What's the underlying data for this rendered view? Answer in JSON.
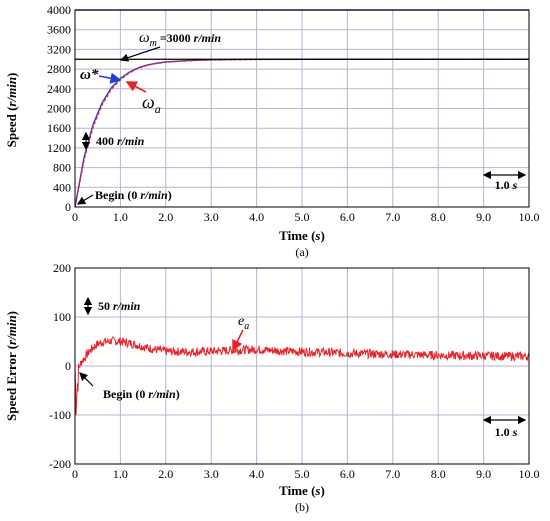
{
  "chart_data": [
    {
      "type": "line",
      "panel_label": "(a)",
      "xlabel": "Time (s)",
      "ylabel": "Speed (r/min)",
      "xlim": [
        0,
        10
      ],
      "ylim": [
        0,
        4000
      ],
      "x_ticks": [
        "0",
        "1.0",
        "2.0",
        "3.0",
        "4.0",
        "5.0",
        "6.0",
        "7.0",
        "8.0",
        "9.0",
        "10.0"
      ],
      "y_ticks": [
        "0",
        "400",
        "800",
        "1200",
        "1600",
        "2000",
        "2400",
        "2800",
        "3200",
        "3600",
        "4000"
      ],
      "grid": true,
      "series": [
        {
          "name": "ω*",
          "color": "#1f3fd6",
          "x": [
            0,
            0.2,
            0.4,
            0.6,
            0.8,
            1.0,
            1.2,
            1.4,
            1.6,
            1.8,
            2.0,
            2.5,
            3.0,
            4.0,
            5.0,
            6.0,
            7.0,
            8.0,
            9.0,
            10.0
          ],
          "y": [
            0,
            1010,
            1680,
            2120,
            2420,
            2610,
            2740,
            2830,
            2885,
            2920,
            2945,
            2975,
            2990,
            3000,
            3000,
            3000,
            3000,
            3000,
            3000,
            3000
          ]
        },
        {
          "name": "ω_a",
          "color": "#e8232a",
          "x": [
            0,
            0.2,
            0.4,
            0.6,
            0.8,
            1.0,
            1.2,
            1.4,
            1.6,
            1.8,
            2.0,
            2.5,
            3.0,
            4.0,
            5.0,
            6.0,
            7.0,
            8.0,
            9.0,
            10.0
          ],
          "y": [
            0,
            960,
            1630,
            2080,
            2390,
            2590,
            2725,
            2820,
            2880,
            2915,
            2940,
            2970,
            2985,
            2995,
            2998,
            2998,
            2998,
            2998,
            2998,
            2998
          ]
        },
        {
          "name": "ω_m",
          "color": "#000000",
          "x": [
            0,
            10
          ],
          "y": [
            3000,
            3000
          ]
        }
      ],
      "annotations": {
        "omega_m": "ω",
        "omega_m_sub": "m",
        "omega_m_value": " =3000 ",
        "omega_m_unit": "r/min",
        "omega_star": "ω*",
        "omega_a": "ω",
        "omega_a_sub": "a",
        "scale_value": "400 ",
        "scale_unit": "r/min",
        "begin_text": "Begin (0 ",
        "begin_unit": "r/min",
        "begin_close": ")",
        "time_scale_value": "1.0 ",
        "time_scale_unit": "s"
      }
    },
    {
      "type": "line",
      "panel_label": "(b)",
      "xlabel": "Time (s)",
      "ylabel": "Speed Error  (r/min)",
      "xlim": [
        0,
        10
      ],
      "ylim": [
        -200,
        200
      ],
      "x_ticks": [
        "0",
        "1.0",
        "2.0",
        "3.0",
        "4.0",
        "5.0",
        "6.0",
        "7.0",
        "8.0",
        "9.0",
        "10.0"
      ],
      "y_ticks": [
        "-200",
        "-100",
        "0",
        "100",
        "200"
      ],
      "grid": true,
      "series": [
        {
          "name": "e_a",
          "color": "#e8232a",
          "x": [
            0,
            0.02,
            0.05,
            0.1,
            0.15,
            0.2,
            0.3,
            0.4,
            0.5,
            0.6,
            0.8,
            1.0,
            1.2,
            1.4,
            1.6,
            1.8,
            2.0,
            2.5,
            3.0,
            3.5,
            4.0,
            4.5,
            5.0,
            5.5,
            6.0,
            6.5,
            7.0,
            7.5,
            8.0,
            8.5,
            9.0,
            9.5,
            10.0
          ],
          "y": [
            0,
            -80,
            -40,
            0,
            10,
            15,
            28,
            38,
            45,
            49,
            51,
            50,
            47,
            42,
            37,
            33,
            30,
            29,
            30,
            32,
            34,
            31,
            29,
            28,
            26,
            25,
            24,
            23,
            22,
            21,
            21,
            20,
            20
          ]
        }
      ],
      "annotations": {
        "scale_value": "50 ",
        "scale_unit": "r/min",
        "e_label": "e",
        "e_sub": "a",
        "begin_text": "Begin (0 ",
        "begin_unit": "r/min",
        "begin_close": ")",
        "time_scale_value": "1.0 ",
        "time_scale_unit": "s"
      }
    }
  ]
}
